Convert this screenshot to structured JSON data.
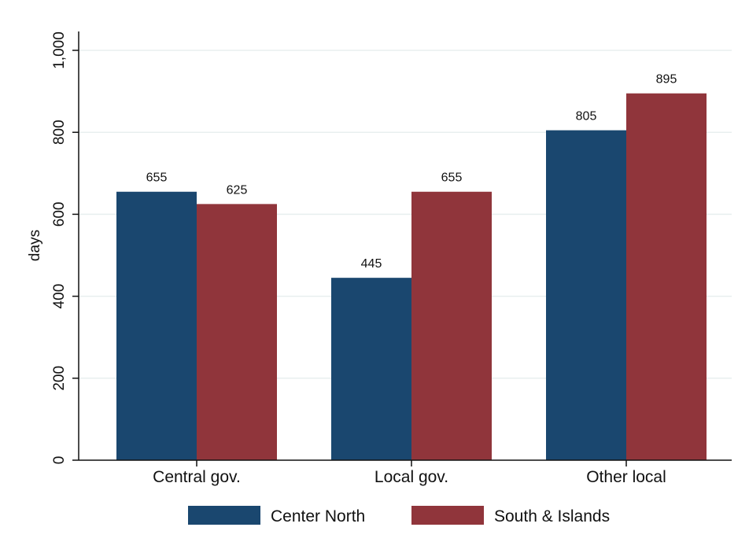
{
  "chart_data": {
    "type": "bar",
    "categories": [
      "Central gov.",
      "Local gov.",
      "Other local"
    ],
    "series": [
      {
        "name": "Center North",
        "values": [
          655,
          445,
          805
        ],
        "color": "#1a476f"
      },
      {
        "name": "South & Islands",
        "values": [
          625,
          655,
          895
        ],
        "color": "#90353b"
      }
    ],
    "title": "",
    "xlabel": "",
    "ylabel": "days",
    "ylim": [
      0,
      1000
    ],
    "yticks": [
      0,
      200,
      400,
      600,
      800,
      1000
    ],
    "ytick_labels": [
      "0",
      "200",
      "400",
      "600",
      "800",
      "1,000"
    ],
    "value_labels": [
      [
        "655",
        "445",
        "805"
      ],
      [
        "625",
        "655",
        "895"
      ]
    ],
    "grid": true,
    "legend_position": "bottom"
  }
}
